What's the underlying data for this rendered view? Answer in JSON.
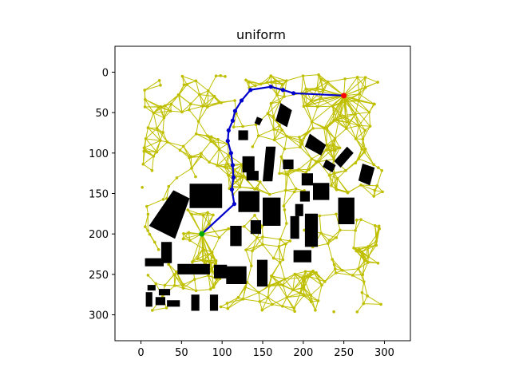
{
  "chart_data": {
    "type": "scatter",
    "title": "uniform",
    "xlabel": "",
    "ylabel": "",
    "xlim": [
      -32,
      332
    ],
    "ylim": [
      332,
      -32
    ],
    "y_inverted": true,
    "x_ticks": [
      0,
      50,
      100,
      150,
      200,
      250,
      300
    ],
    "y_ticks": [
      0,
      50,
      100,
      150,
      200,
      250,
      300
    ],
    "grid": false,
    "colors": {
      "roadmap": "#bfbf00",
      "path": "#0000cc",
      "start": "#00aa00",
      "goal": "#ff0000",
      "obstacle": "#000000"
    },
    "start": {
      "x": 75,
      "y": 200
    },
    "goal": {
      "x": 250,
      "y": 29
    },
    "path": [
      {
        "x": 250,
        "y": 29
      },
      {
        "x": 188,
        "y": 26
      },
      {
        "x": 175,
        "y": 22
      },
      {
        "x": 160,
        "y": 18
      },
      {
        "x": 135,
        "y": 22
      },
      {
        "x": 124,
        "y": 35
      },
      {
        "x": 116,
        "y": 48
      },
      {
        "x": 113,
        "y": 60
      },
      {
        "x": 108,
        "y": 72
      },
      {
        "x": 107,
        "y": 85
      },
      {
        "x": 111,
        "y": 100
      },
      {
        "x": 113,
        "y": 115
      },
      {
        "x": 114,
        "y": 130
      },
      {
        "x": 112,
        "y": 145
      },
      {
        "x": 115,
        "y": 163
      },
      {
        "x": 75,
        "y": 200
      }
    ],
    "obstacles": [
      [
        [
          172,
          38
        ],
        [
          186,
          47
        ],
        [
          180,
          68
        ],
        [
          166,
          60
        ]
      ],
      [
        [
          143,
          55
        ],
        [
          150,
          58
        ],
        [
          146,
          66
        ],
        [
          140,
          63
        ]
      ],
      [
        [
          208,
          76
        ],
        [
          228,
          90
        ],
        [
          222,
          103
        ],
        [
          202,
          92
        ]
      ],
      [
        [
          254,
          92
        ],
        [
          262,
          100
        ],
        [
          246,
          118
        ],
        [
          238,
          110
        ]
      ],
      [
        [
          228,
          108
        ],
        [
          240,
          115
        ],
        [
          236,
          124
        ],
        [
          224,
          117
        ]
      ],
      [
        [
          273,
          113
        ],
        [
          288,
          118
        ],
        [
          282,
          140
        ],
        [
          268,
          134
        ]
      ],
      [
        [
          120,
          72
        ],
        [
          132,
          72
        ],
        [
          132,
          84
        ],
        [
          120,
          84
        ]
      ],
      [
        [
          125,
          104
        ],
        [
          140,
          104
        ],
        [
          140,
          124
        ],
        [
          125,
          124
        ]
      ],
      [
        [
          130,
          122
        ],
        [
          145,
          122
        ],
        [
          145,
          134
        ],
        [
          130,
          134
        ]
      ],
      [
        [
          154,
          92
        ],
        [
          166,
          92
        ],
        [
          162,
          135
        ],
        [
          150,
          135
        ]
      ],
      [
        [
          175,
          108
        ],
        [
          188,
          108
        ],
        [
          188,
          120
        ],
        [
          175,
          120
        ]
      ],
      [
        [
          198,
          125
        ],
        [
          212,
          125
        ],
        [
          212,
          140
        ],
        [
          198,
          140
        ]
      ],
      [
        [
          212,
          137
        ],
        [
          232,
          137
        ],
        [
          232,
          158
        ],
        [
          212,
          158
        ]
      ],
      [
        [
          196,
          147
        ],
        [
          208,
          147
        ],
        [
          208,
          160
        ],
        [
          196,
          160
        ]
      ],
      [
        [
          60,
          138
        ],
        [
          100,
          138
        ],
        [
          100,
          168
        ],
        [
          60,
          168
        ]
      ],
      [
        [
          40,
          146
        ],
        [
          60,
          156
        ],
        [
          42,
          206
        ],
        [
          10,
          190
        ]
      ],
      [
        [
          120,
          147
        ],
        [
          146,
          147
        ],
        [
          146,
          173
        ],
        [
          120,
          173
        ]
      ],
      [
        [
          150,
          155
        ],
        [
          172,
          155
        ],
        [
          172,
          190
        ],
        [
          150,
          190
        ]
      ],
      [
        [
          190,
          163
        ],
        [
          200,
          163
        ],
        [
          200,
          178
        ],
        [
          190,
          178
        ]
      ],
      [
        [
          184,
          178
        ],
        [
          195,
          178
        ],
        [
          195,
          206
        ],
        [
          184,
          206
        ]
      ],
      [
        [
          202,
          175
        ],
        [
          218,
          175
        ],
        [
          218,
          216
        ],
        [
          202,
          216
        ]
      ],
      [
        [
          243,
          155
        ],
        [
          263,
          155
        ],
        [
          263,
          188
        ],
        [
          243,
          188
        ]
      ],
      [
        [
          110,
          190
        ],
        [
          124,
          190
        ],
        [
          124,
          215
        ],
        [
          110,
          215
        ]
      ],
      [
        [
          135,
          183
        ],
        [
          148,
          183
        ],
        [
          148,
          200
        ],
        [
          135,
          200
        ]
      ],
      [
        [
          188,
          220
        ],
        [
          210,
          220
        ],
        [
          210,
          235
        ],
        [
          188,
          235
        ]
      ],
      [
        [
          25,
          210
        ],
        [
          38,
          210
        ],
        [
          38,
          236
        ],
        [
          25,
          236
        ]
      ],
      [
        [
          5,
          230
        ],
        [
          28,
          230
        ],
        [
          28,
          240
        ],
        [
          5,
          240
        ]
      ],
      [
        [
          45,
          237
        ],
        [
          85,
          237
        ],
        [
          85,
          250
        ],
        [
          45,
          250
        ]
      ],
      [
        [
          90,
          238
        ],
        [
          106,
          238
        ],
        [
          106,
          255
        ],
        [
          90,
          255
        ]
      ],
      [
        [
          105,
          240
        ],
        [
          130,
          240
        ],
        [
          130,
          262
        ],
        [
          105,
          262
        ]
      ],
      [
        [
          143,
          232
        ],
        [
          156,
          232
        ],
        [
          156,
          265
        ],
        [
          143,
          265
        ]
      ],
      [
        [
          8,
          263
        ],
        [
          18,
          263
        ],
        [
          18,
          270
        ],
        [
          8,
          270
        ]
      ],
      [
        [
          22,
          268
        ],
        [
          36,
          268
        ],
        [
          36,
          276
        ],
        [
          22,
          276
        ]
      ],
      [
        [
          6,
          272
        ],
        [
          14,
          272
        ],
        [
          14,
          290
        ],
        [
          6,
          290
        ]
      ],
      [
        [
          18,
          278
        ],
        [
          30,
          278
        ],
        [
          30,
          288
        ],
        [
          18,
          288
        ]
      ],
      [
        [
          32,
          282
        ],
        [
          48,
          282
        ],
        [
          48,
          290
        ],
        [
          32,
          290
        ]
      ],
      [
        [
          62,
          275
        ],
        [
          72,
          275
        ],
        [
          72,
          295
        ],
        [
          62,
          295
        ]
      ],
      [
        [
          85,
          275
        ],
        [
          95,
          275
        ],
        [
          95,
          295
        ],
        [
          85,
          295
        ]
      ]
    ]
  }
}
